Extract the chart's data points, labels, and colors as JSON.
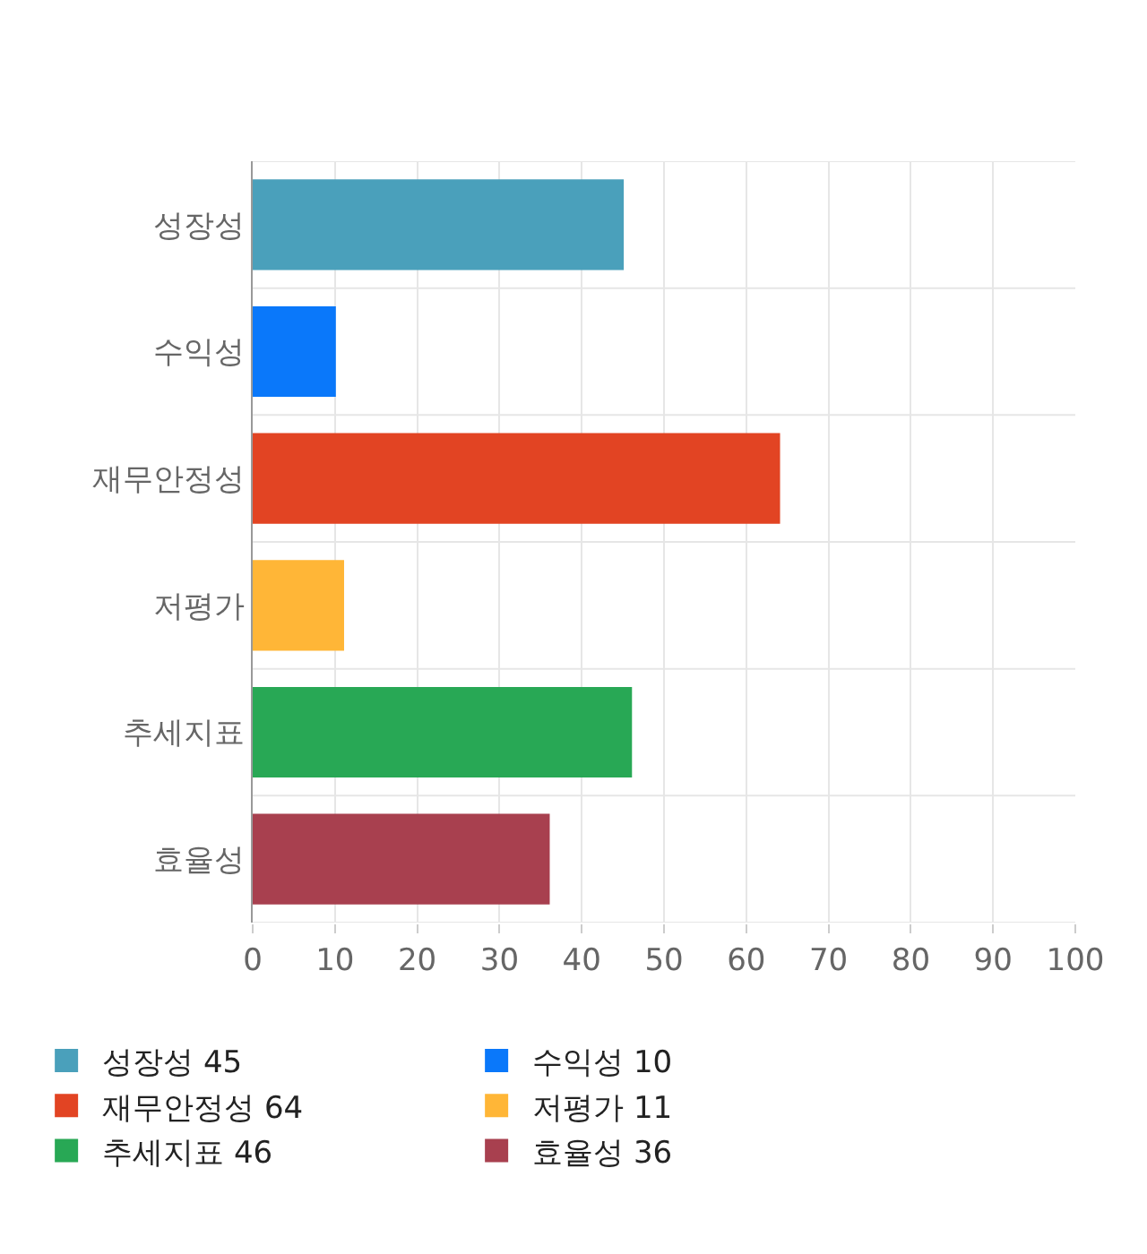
{
  "chart_data": {
    "type": "bar",
    "orientation": "horizontal",
    "categories": [
      "성장성",
      "수익성",
      "재무안정성",
      "저평가",
      "추세지표",
      "효율성"
    ],
    "series": [
      {
        "name": "성장성 45",
        "color": "#4aa0bb",
        "values": [
          45,
          null,
          null,
          null,
          null,
          null
        ]
      },
      {
        "name": "수익성 10",
        "color": "#0a78fa",
        "values": [
          null,
          10,
          null,
          null,
          null,
          null
        ]
      },
      {
        "name": "재무안정성 64",
        "color": "#e24423",
        "values": [
          null,
          null,
          64,
          null,
          null,
          null
        ]
      },
      {
        "name": "저평가 11",
        "color": "#ffb637",
        "values": [
          null,
          null,
          null,
          11,
          null,
          null
        ]
      },
      {
        "name": "추세지표 46",
        "color": "#28a855",
        "values": [
          null,
          null,
          null,
          null,
          46,
          null
        ]
      },
      {
        "name": "효율성 36",
        "color": "#a8404f",
        "values": [
          null,
          null,
          null,
          null,
          null,
          36
        ]
      }
    ],
    "xlim": [
      0,
      100
    ],
    "xticks": [
      0,
      10,
      20,
      30,
      40,
      50,
      60,
      70,
      80,
      90,
      100
    ],
    "grid": true,
    "legend": "bottom"
  }
}
